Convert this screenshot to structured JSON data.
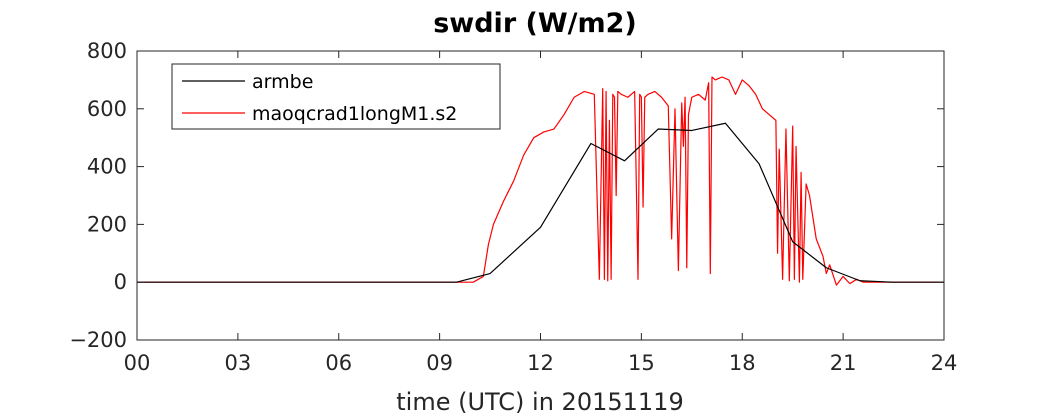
{
  "chart_data": {
    "type": "line",
    "title": "swdir  (W/m2)",
    "xlabel": "time (UTC) in 20151119",
    "ylabel": "",
    "xlim": [
      0,
      24
    ],
    "ylim": [
      -200,
      800
    ],
    "x_ticks": [
      0,
      3,
      6,
      9,
      12,
      15,
      18,
      21,
      24
    ],
    "x_tick_labels": [
      "00",
      "03",
      "06",
      "09",
      "12",
      "15",
      "18",
      "21",
      "24"
    ],
    "y_ticks": [
      -200,
      0,
      200,
      400,
      600,
      800
    ],
    "y_tick_labels": [
      "−200",
      "0",
      "200",
      "400",
      "600",
      "800"
    ],
    "legend_position": "top-left",
    "series": [
      {
        "name": "armbe",
        "color": "#000000",
        "x": [
          0,
          9.5,
          10.5,
          12.0,
          13.5,
          14.5,
          15.5,
          16.5,
          17.5,
          18.5,
          19.5,
          20.5,
          21.5,
          22.5,
          24
        ],
        "y": [
          0,
          0,
          30,
          190,
          480,
          420,
          530,
          525,
          550,
          410,
          140,
          50,
          5,
          0,
          0
        ]
      },
      {
        "name": "maoqcrad1longM1.s2",
        "color": "#ff0000",
        "x": [
          0,
          10.0,
          10.3,
          10.45,
          10.6,
          10.9,
          11.2,
          11.5,
          11.8,
          12.1,
          12.4,
          12.7,
          13.0,
          13.3,
          13.6,
          13.75,
          13.85,
          13.9,
          13.95,
          14.0,
          14.05,
          14.1,
          14.15,
          14.2,
          14.25,
          14.3,
          14.4,
          14.6,
          14.8,
          14.9,
          14.95,
          15.0,
          15.05,
          15.1,
          15.2,
          15.4,
          15.6,
          15.8,
          15.9,
          16.0,
          16.1,
          16.2,
          16.25,
          16.3,
          16.35,
          16.4,
          16.5,
          16.7,
          16.9,
          17.0,
          17.05,
          17.1,
          17.2,
          17.4,
          17.6,
          17.8,
          18.0,
          18.2,
          18.4,
          18.6,
          18.8,
          19.0,
          19.05,
          19.1,
          19.2,
          19.3,
          19.4,
          19.5,
          19.55,
          19.6,
          19.7,
          19.75,
          19.8,
          19.9,
          20.0,
          20.2,
          20.4,
          20.5,
          20.6,
          20.8,
          21.0,
          21.2,
          21.4,
          21.6,
          22.0,
          24
        ],
        "y": [
          0,
          0,
          20,
          130,
          200,
          280,
          350,
          440,
          500,
          520,
          530,
          580,
          640,
          660,
          650,
          10,
          670,
          10,
          660,
          5,
          560,
          10,
          650,
          640,
          300,
          660,
          650,
          640,
          660,
          10,
          650,
          640,
          260,
          640,
          650,
          660,
          640,
          610,
          150,
          600,
          40,
          620,
          470,
          640,
          50,
          580,
          640,
          650,
          630,
          690,
          30,
          710,
          700,
          710,
          700,
          650,
          700,
          680,
          650,
          600,
          580,
          560,
          100,
          460,
          10,
          530,
          5,
          540,
          10,
          470,
          0,
          380,
          10,
          340,
          300,
          150,
          90,
          30,
          60,
          -10,
          20,
          -5,
          10,
          0,
          0,
          0
        ]
      }
    ]
  }
}
